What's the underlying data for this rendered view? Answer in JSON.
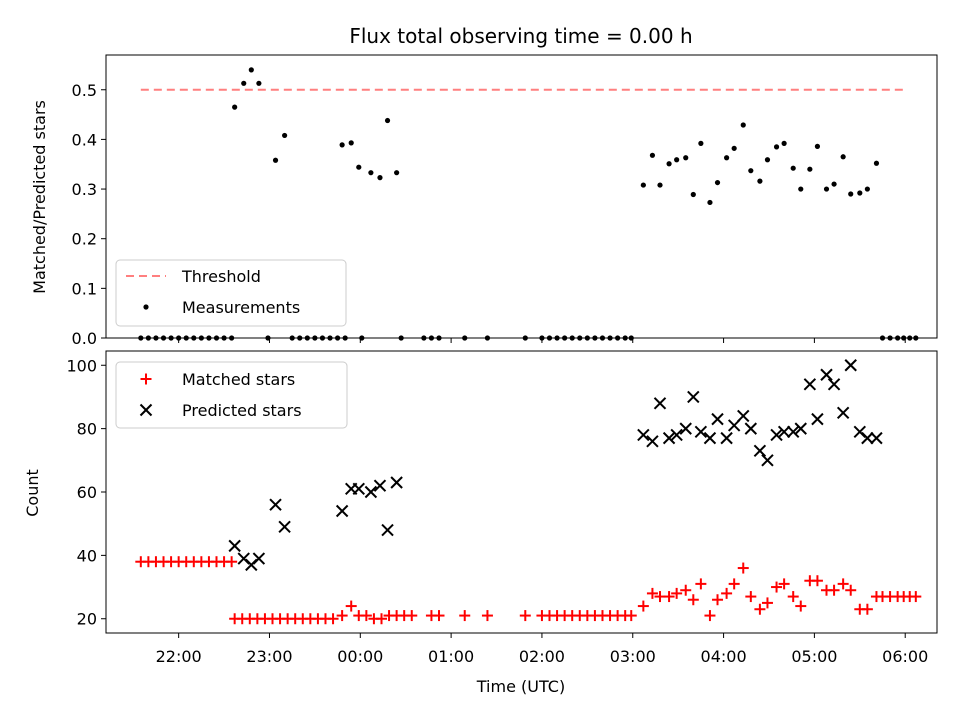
{
  "chart_data": [
    {
      "type": "scatter",
      "title": "Flux total observing time = 0.00 h",
      "xlabel": "",
      "ylabel": "Matched/Predicted stars",
      "xlim_hours": [
        -2.8,
        6.35
      ],
      "ylim": [
        0,
        0.57
      ],
      "yticks": [
        0.0,
        0.1,
        0.2,
        0.3,
        0.4,
        0.5
      ],
      "ytick_labels": [
        "0.0",
        "0.1",
        "0.2",
        "0.3",
        "0.4",
        "0.5"
      ],
      "legend": {
        "position": "lower-left",
        "entries": [
          "Threshold",
          "Measurements"
        ]
      },
      "threshold": {
        "name": "Threshold",
        "value": 0.5,
        "x_range": [
          "21:35",
          "05:59"
        ],
        "color": "#ff7f7f"
      },
      "measurements": {
        "name": "Measurements",
        "color": "#000000",
        "points": [
          [
            "21:35",
            0
          ],
          [
            "21:40",
            0
          ],
          [
            "21:45",
            0
          ],
          [
            "21:50",
            0
          ],
          [
            "21:55",
            0
          ],
          [
            "22:00",
            0
          ],
          [
            "22:05",
            0
          ],
          [
            "22:10",
            0
          ],
          [
            "22:15",
            0
          ],
          [
            "22:20",
            0
          ],
          [
            "22:25",
            0
          ],
          [
            "22:30",
            0
          ],
          [
            "22:35",
            0
          ],
          [
            "22:37",
            0.465
          ],
          [
            "22:43",
            0.513
          ],
          [
            "22:48",
            0.54
          ],
          [
            "22:53",
            0.513
          ],
          [
            "22:59",
            0
          ],
          [
            "23:04",
            0.358
          ],
          [
            "23:10",
            0.408
          ],
          [
            "23:15",
            0
          ],
          [
            "23:20",
            0
          ],
          [
            "23:25",
            0
          ],
          [
            "23:30",
            0
          ],
          [
            "23:35",
            0
          ],
          [
            "23:40",
            0
          ],
          [
            "23:45",
            0
          ],
          [
            "23:48",
            0.389
          ],
          [
            "23:50",
            0
          ],
          [
            "23:54",
            0.393
          ],
          [
            "23:59",
            0.344
          ],
          [
            "00:01",
            0
          ],
          [
            "00:07",
            0.333
          ],
          [
            "00:13",
            0.323
          ],
          [
            "00:18",
            0.438
          ],
          [
            "00:24",
            0.333
          ],
          [
            "00:27",
            0
          ],
          [
            "00:42",
            0
          ],
          [
            "00:47",
            0
          ],
          [
            "00:52",
            0
          ],
          [
            "01:09",
            0
          ],
          [
            "01:24",
            0
          ],
          [
            "01:49",
            0
          ],
          [
            "02:00",
            0
          ],
          [
            "02:05",
            0
          ],
          [
            "02:10",
            0
          ],
          [
            "02:15",
            0
          ],
          [
            "02:20",
            0
          ],
          [
            "02:25",
            0
          ],
          [
            "02:30",
            0
          ],
          [
            "02:35",
            0
          ],
          [
            "02:40",
            0
          ],
          [
            "02:45",
            0
          ],
          [
            "02:50",
            0
          ],
          [
            "02:55",
            0
          ],
          [
            "02:59",
            0
          ],
          [
            "03:07",
            0.308
          ],
          [
            "03:13",
            0.368
          ],
          [
            "03:18",
            0.308
          ],
          [
            "03:24",
            0.351
          ],
          [
            "03:29",
            0.359
          ],
          [
            "03:35",
            0.363
          ],
          [
            "03:40",
            0.289
          ],
          [
            "03:45",
            0.392
          ],
          [
            "03:51",
            0.273
          ],
          [
            "03:56",
            0.313
          ],
          [
            "04:02",
            0.363
          ],
          [
            "04:07",
            0.382
          ],
          [
            "04:13",
            0.429
          ],
          [
            "04:18",
            0.337
          ],
          [
            "04:24",
            0.316
          ],
          [
            "04:29",
            0.359
          ],
          [
            "04:35",
            0.385
          ],
          [
            "04:40",
            0.392
          ],
          [
            "04:46",
            0.342
          ],
          [
            "04:51",
            0.3
          ],
          [
            "04:57",
            0.34
          ],
          [
            "05:02",
            0.386
          ],
          [
            "05:08",
            0.3
          ],
          [
            "05:13",
            0.31
          ],
          [
            "05:19",
            0.365
          ],
          [
            "05:24",
            0.29
          ],
          [
            "05:30",
            0.292
          ],
          [
            "05:35",
            0.3
          ],
          [
            "05:41",
            0.352
          ],
          [
            "05:45",
            0
          ],
          [
            "05:50",
            0
          ],
          [
            "05:55",
            0
          ],
          [
            "05:59",
            0
          ],
          [
            "06:03",
            0
          ],
          [
            "06:07",
            0
          ]
        ]
      }
    },
    {
      "type": "scatter",
      "title": "",
      "xlabel": "Time (UTC)",
      "ylabel": "Count",
      "xlim_hours": [
        -2.8,
        6.35
      ],
      "ylim": [
        15.5,
        104.5
      ],
      "yticks": [
        20,
        40,
        60,
        80,
        100
      ],
      "ytick_labels": [
        "20",
        "40",
        "60",
        "80",
        "100"
      ],
      "xticks": [
        "22:00",
        "23:00",
        "00:00",
        "01:00",
        "02:00",
        "03:00",
        "04:00",
        "05:00",
        "06:00"
      ],
      "legend": {
        "position": "upper-left",
        "entries": [
          "Matched stars",
          "Predicted stars"
        ]
      },
      "series": [
        {
          "name": "Matched stars",
          "marker": "+",
          "color": "#ff0000",
          "points": [
            [
              "21:35",
              38
            ],
            [
              "21:40",
              38
            ],
            [
              "21:45",
              38
            ],
            [
              "21:50",
              38
            ],
            [
              "21:55",
              38
            ],
            [
              "22:00",
              38
            ],
            [
              "22:05",
              38
            ],
            [
              "22:10",
              38
            ],
            [
              "22:15",
              38
            ],
            [
              "22:20",
              38
            ],
            [
              "22:25",
              38
            ],
            [
              "22:30",
              38
            ],
            [
              "22:35",
              38
            ],
            [
              "22:37",
              20
            ],
            [
              "22:42",
              20
            ],
            [
              "22:47",
              20
            ],
            [
              "22:52",
              20
            ],
            [
              "22:57",
              20
            ],
            [
              "23:02",
              20
            ],
            [
              "23:07",
              20
            ],
            [
              "23:12",
              20
            ],
            [
              "23:17",
              20
            ],
            [
              "23:22",
              20
            ],
            [
              "23:27",
              20
            ],
            [
              "23:32",
              20
            ],
            [
              "23:37",
              20
            ],
            [
              "23:42",
              20
            ],
            [
              "23:48",
              21
            ],
            [
              "23:54",
              24
            ],
            [
              "23:59",
              21
            ],
            [
              "00:04",
              21
            ],
            [
              "00:09",
              20
            ],
            [
              "00:14",
              20
            ],
            [
              "00:19",
              21
            ],
            [
              "00:24",
              21
            ],
            [
              "00:29",
              21
            ],
            [
              "00:34",
              21
            ],
            [
              "00:47",
              21
            ],
            [
              "00:52",
              21
            ],
            [
              "01:09",
              21
            ],
            [
              "01:24",
              21
            ],
            [
              "01:49",
              21
            ],
            [
              "02:00",
              21
            ],
            [
              "02:05",
              21
            ],
            [
              "02:10",
              21
            ],
            [
              "02:15",
              21
            ],
            [
              "02:20",
              21
            ],
            [
              "02:25",
              21
            ],
            [
              "02:30",
              21
            ],
            [
              "02:35",
              21
            ],
            [
              "02:40",
              21
            ],
            [
              "02:45",
              21
            ],
            [
              "02:50",
              21
            ],
            [
              "02:55",
              21
            ],
            [
              "02:59",
              21
            ],
            [
              "03:07",
              24
            ],
            [
              "03:13",
              28
            ],
            [
              "03:18",
              27
            ],
            [
              "03:24",
              27
            ],
            [
              "03:29",
              28
            ],
            [
              "03:35",
              29
            ],
            [
              "03:40",
              26
            ],
            [
              "03:45",
              31
            ],
            [
              "03:51",
              21
            ],
            [
              "03:56",
              26
            ],
            [
              "04:02",
              28
            ],
            [
              "04:07",
              31
            ],
            [
              "04:13",
              36
            ],
            [
              "04:18",
              27
            ],
            [
              "04:24",
              23
            ],
            [
              "04:29",
              25
            ],
            [
              "04:35",
              30
            ],
            [
              "04:40",
              31
            ],
            [
              "04:46",
              27
            ],
            [
              "04:51",
              24
            ],
            [
              "04:57",
              32
            ],
            [
              "05:02",
              32
            ],
            [
              "05:08",
              29
            ],
            [
              "05:13",
              29
            ],
            [
              "05:19",
              31
            ],
            [
              "05:24",
              29
            ],
            [
              "05:30",
              23
            ],
            [
              "05:35",
              23
            ],
            [
              "05:41",
              27
            ],
            [
              "05:45",
              27
            ],
            [
              "05:50",
              27
            ],
            [
              "05:55",
              27
            ],
            [
              "05:59",
              27
            ],
            [
              "06:03",
              27
            ],
            [
              "06:07",
              27
            ]
          ]
        },
        {
          "name": "Predicted stars",
          "marker": "x",
          "color": "#000000",
          "points": [
            [
              "22:37",
              43
            ],
            [
              "22:43",
              39
            ],
            [
              "22:48",
              37
            ],
            [
              "22:53",
              39
            ],
            [
              "23:04",
              56
            ],
            [
              "23:10",
              49
            ],
            [
              "23:48",
              54
            ],
            [
              "23:54",
              61
            ],
            [
              "23:59",
              61
            ],
            [
              "00:07",
              60
            ],
            [
              "00:13",
              62
            ],
            [
              "00:18",
              48
            ],
            [
              "00:24",
              63
            ],
            [
              "03:07",
              78
            ],
            [
              "03:13",
              76
            ],
            [
              "03:18",
              88
            ],
            [
              "03:24",
              77
            ],
            [
              "03:29",
              78
            ],
            [
              "03:35",
              80
            ],
            [
              "03:40",
              90
            ],
            [
              "03:45",
              79
            ],
            [
              "03:51",
              77
            ],
            [
              "03:56",
              83
            ],
            [
              "04:02",
              77
            ],
            [
              "04:07",
              81
            ],
            [
              "04:13",
              84
            ],
            [
              "04:18",
              80
            ],
            [
              "04:24",
              73
            ],
            [
              "04:29",
              70
            ],
            [
              "04:35",
              78
            ],
            [
              "04:40",
              79
            ],
            [
              "04:46",
              79
            ],
            [
              "04:51",
              80
            ],
            [
              "04:57",
              94
            ],
            [
              "05:02",
              83
            ],
            [
              "05:08",
              97
            ],
            [
              "05:13",
              94
            ],
            [
              "05:19",
              85
            ],
            [
              "05:24",
              100
            ],
            [
              "05:30",
              79
            ],
            [
              "05:35",
              77
            ],
            [
              "05:41",
              77
            ]
          ]
        }
      ]
    }
  ]
}
